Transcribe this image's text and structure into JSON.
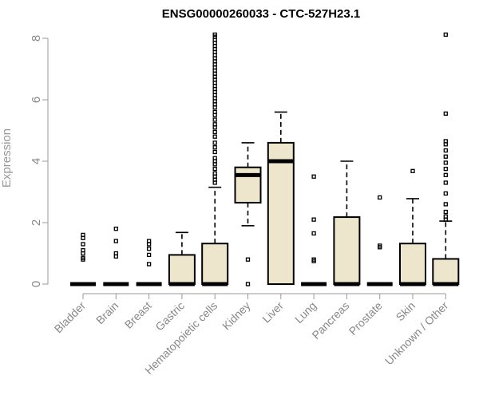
{
  "chart_data": {
    "type": "box",
    "title": "ENSG00000260033 - CTC-527H23.1",
    "xlabel": "",
    "ylabel": "Expression",
    "ylim": [
      0,
      8
    ],
    "yticks": [
      0,
      2,
      4,
      6,
      8
    ],
    "grid": false,
    "categories": [
      "Bladder",
      "Brain",
      "Breast",
      "Gastric",
      "Hematopoietic cells",
      "Kidney",
      "Liver",
      "Lung",
      "Pancreas",
      "Prostate",
      "Skin",
      "Unknown / Other"
    ],
    "boxes": [
      {
        "q1": 0,
        "median": 0,
        "q3": 0,
        "whisker_low": 0,
        "whisker_high": 0,
        "outliers": [
          0.8,
          0.85,
          1.0,
          1.1,
          1.3,
          1.5,
          1.6
        ]
      },
      {
        "q1": 0,
        "median": 0,
        "q3": 0,
        "whisker_low": 0,
        "whisker_high": 0,
        "outliers": [
          0.9,
          1.0,
          1.4,
          1.8
        ]
      },
      {
        "q1": 0,
        "median": 0,
        "q3": 0,
        "whisker_low": 0,
        "whisker_high": 0,
        "outliers": [
          0.65,
          0.95,
          1.15,
          1.3,
          1.4
        ]
      },
      {
        "q1": 0,
        "median": 0,
        "q3": 0.95,
        "whisker_low": 0,
        "whisker_high": 1.68,
        "outliers": []
      },
      {
        "q1": 0,
        "median": 0,
        "q3": 1.32,
        "whisker_low": 0,
        "whisker_high": 3.15,
        "outliers": [
          3.3,
          3.4,
          3.5,
          3.6,
          3.75,
          3.9,
          4.0,
          4.1,
          4.3,
          4.45,
          4.6,
          4.8,
          4.95,
          5.1,
          5.2,
          5.35,
          5.5,
          5.6,
          5.75,
          5.85,
          5.95,
          6.05,
          6.15,
          6.25,
          6.35,
          6.45,
          6.55,
          6.65,
          6.75,
          6.85,
          6.95,
          7.05,
          7.15,
          7.25,
          7.35,
          7.45,
          7.55,
          7.65,
          7.75,
          7.85,
          7.95,
          8.05,
          8.12
        ]
      },
      {
        "q1": 2.65,
        "median": 3.55,
        "q3": 3.8,
        "whisker_low": 1.9,
        "whisker_high": 4.6,
        "outliers": [
          0.0,
          0.8
        ]
      },
      {
        "q1": 0,
        "median": 4.0,
        "q3": 4.6,
        "whisker_low": 0,
        "whisker_high": 5.6,
        "outliers": []
      },
      {
        "q1": 0,
        "median": 0,
        "q3": 0,
        "whisker_low": 0,
        "whisker_high": 0,
        "outliers": [
          0.75,
          0.8,
          1.65,
          2.1,
          3.5
        ]
      },
      {
        "q1": 0,
        "median": 0,
        "q3": 2.18,
        "whisker_low": 0,
        "whisker_high": 4.0,
        "outliers": []
      },
      {
        "q1": 0,
        "median": 0,
        "q3": 0,
        "whisker_low": 0,
        "whisker_high": 0,
        "outliers": [
          1.2,
          1.25,
          2.82
        ]
      },
      {
        "q1": 0,
        "median": 0,
        "q3": 1.32,
        "whisker_low": 0,
        "whisker_high": 2.78,
        "outliers": [
          3.68
        ]
      },
      {
        "q1": 0,
        "median": 0,
        "q3": 0.82,
        "whisker_low": 0,
        "whisker_high": 2.05,
        "outliers": [
          2.1,
          2.2,
          2.35,
          2.6,
          2.95,
          3.3,
          3.55,
          3.75,
          3.95,
          4.15,
          4.35,
          4.55,
          4.65,
          5.55,
          8.12
        ]
      }
    ]
  }
}
